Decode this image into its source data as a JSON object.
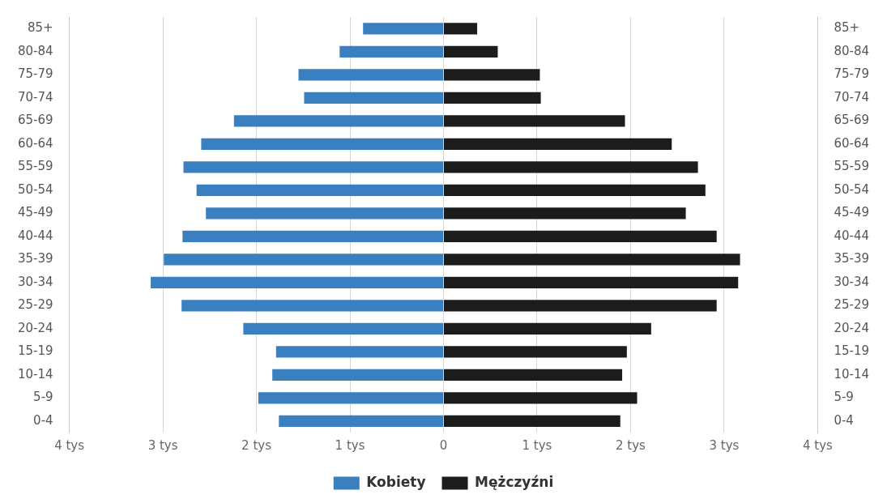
{
  "chart_data": {
    "type": "bar",
    "orientation": "horizontal",
    "stacked": true,
    "categories": [
      "85+",
      "80-84",
      "75-79",
      "70-74",
      "65-69",
      "60-64",
      "55-59",
      "50-54",
      "45-49",
      "40-44",
      "35-39",
      "30-34",
      "25-29",
      "20-24",
      "15-19",
      "10-14",
      "5-9",
      "0-4"
    ],
    "series": [
      {
        "name": "Kobiety",
        "color": "#3a7fc0",
        "values": [
          -0.86,
          -1.11,
          -1.55,
          -1.49,
          -2.24,
          -2.59,
          -2.78,
          -2.64,
          -2.54,
          -2.79,
          -2.99,
          -3.13,
          -2.8,
          -2.14,
          -1.79,
          -1.83,
          -1.98,
          -1.76
        ]
      },
      {
        "name": "Mężczyźni",
        "color": "#1c1c1c",
        "values": [
          0.36,
          0.58,
          1.03,
          1.04,
          1.94,
          2.44,
          2.72,
          2.8,
          2.59,
          2.92,
          3.17,
          3.15,
          2.92,
          2.22,
          1.96,
          1.91,
          2.07,
          1.89
        ]
      }
    ],
    "xlim": [
      -4,
      4
    ],
    "xticks": [
      {
        "value": -4,
        "label": "4 tys"
      },
      {
        "value": -3,
        "label": "3 tys"
      },
      {
        "value": -2,
        "label": "2 tys"
      },
      {
        "value": -1,
        "label": "1 tys"
      },
      0,
      {
        "value": 1,
        "label": "1 tys"
      },
      {
        "value": 2,
        "label": "2 tys"
      },
      {
        "value": 3,
        "label": "3 tys"
      },
      {
        "value": 4,
        "label": "4 tys"
      }
    ],
    "grid": "x",
    "legend": "bottom"
  }
}
